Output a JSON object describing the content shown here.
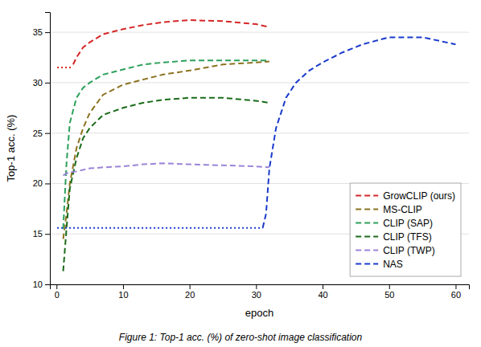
{
  "chart_data": {
    "type": "line",
    "xlabel": "epoch",
    "ylabel": "Top-1 acc. (%)",
    "caption": "Figure 1: Top-1 acc. (%) of zero-shot image classification",
    "xlim": [
      -1,
      62
    ],
    "ylim": [
      10,
      37
    ],
    "xticks": [
      0,
      10,
      20,
      30,
      40,
      50,
      60
    ],
    "yticks": [
      10,
      15,
      20,
      25,
      30,
      35
    ],
    "grid": true,
    "legend": "lower right",
    "series": [
      {
        "name": "GrowCLIP (ours)",
        "color": "#d62728",
        "line_style": "dashed",
        "lead_in": {
          "line_style": "dotted",
          "x": [
            0.1,
            2.5
          ],
          "values": [
            31.5,
            31.5
          ]
        },
        "x": [
          2.5,
          3,
          4,
          5,
          7,
          10,
          13,
          16,
          20,
          25,
          30,
          32
        ],
        "values": [
          31.8,
          32.5,
          33.5,
          34.0,
          34.8,
          35.3,
          35.7,
          36.0,
          36.2,
          36.1,
          35.8,
          35.5
        ]
      },
      {
        "name": "MS-CLIP",
        "color": "#8b7320",
        "line_style": "dashed",
        "x": [
          1,
          1.5,
          2,
          3,
          4,
          5,
          7,
          10,
          13,
          16,
          20,
          25,
          30,
          32
        ],
        "values": [
          14.5,
          17.0,
          20.0,
          23.5,
          25.5,
          27.0,
          28.8,
          29.8,
          30.3,
          30.8,
          31.2,
          31.8,
          32.0,
          32.1
        ]
      },
      {
        "name": "CLIP (SAP)",
        "color": "#2ca05a",
        "line_style": "dashed",
        "x": [
          1,
          1.5,
          2,
          3,
          4,
          5,
          7,
          10,
          13,
          16,
          20,
          25,
          30,
          32
        ],
        "values": [
          15.5,
          22.0,
          26.0,
          28.5,
          29.5,
          30.0,
          30.8,
          31.3,
          31.8,
          32.0,
          32.2,
          32.2,
          32.2,
          32.2
        ]
      },
      {
        "name": "CLIP (TFS)",
        "color": "#1a6b1a",
        "line_style": "dashed",
        "x": [
          1,
          1.5,
          2,
          3,
          4,
          5,
          7,
          10,
          13,
          16,
          20,
          25,
          30,
          32
        ],
        "values": [
          11.3,
          15.5,
          19.5,
          22.5,
          24.5,
          25.5,
          26.8,
          27.5,
          28.0,
          28.3,
          28.5,
          28.5,
          28.2,
          28.0
        ]
      },
      {
        "name": "CLIP (TWP)",
        "color": "#9b84d8",
        "line_style": "dashed",
        "x": [
          1,
          1.5,
          2,
          3,
          5,
          7,
          10,
          13,
          16,
          20,
          25,
          30,
          32
        ],
        "values": [
          20.8,
          21.0,
          21.1,
          21.2,
          21.5,
          21.6,
          21.7,
          21.9,
          22.0,
          21.9,
          21.8,
          21.7,
          21.6
        ]
      },
      {
        "name": "NAS",
        "color": "#1a3acc",
        "line_style": "dashed",
        "lead_in": {
          "line_style": "dotted",
          "x": [
            0.1,
            31.0
          ],
          "values": [
            15.6,
            15.6
          ]
        },
        "x": [
          31.0,
          31.5,
          32.0,
          33.0,
          34.5,
          36.0,
          38.0,
          40.0,
          43.0,
          46.0,
          50.0,
          55.0,
          60.0
        ],
        "values": [
          15.6,
          17.0,
          21.5,
          25.5,
          28.5,
          30.0,
          31.2,
          32.0,
          33.0,
          33.8,
          34.5,
          34.5,
          33.8
        ]
      }
    ]
  }
}
